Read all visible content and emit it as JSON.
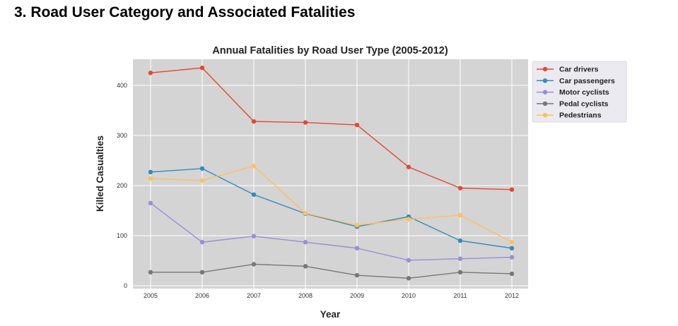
{
  "section_heading": "3. Road User Category and Associated Fatalities",
  "chart_data": {
    "type": "line",
    "title": "Annual Fatalities by Road User Type (2005-2012)",
    "xlabel": "Year",
    "ylabel": "Killed Casualties",
    "x": [
      "2005",
      "2006",
      "2007",
      "2008",
      "2009",
      "2010",
      "2011",
      "2012"
    ],
    "ylim": [
      0,
      450
    ],
    "yticks": [
      0,
      100,
      200,
      300,
      400
    ],
    "grid": true,
    "legend_position": "outside-right-top",
    "background": "#d4d4d4",
    "series": [
      {
        "name": "Car drivers",
        "color": "#e24a33",
        "values": [
          425,
          435,
          328,
          326,
          321,
          237,
          195,
          192
        ]
      },
      {
        "name": "Car passengers",
        "color": "#348abd",
        "values": [
          227,
          234,
          182,
          144,
          118,
          138,
          90,
          75
        ]
      },
      {
        "name": "Motor cyclists",
        "color": "#988ed5",
        "values": [
          165,
          87,
          99,
          87,
          75,
          51,
          54,
          57
        ]
      },
      {
        "name": "Pedal cyclists",
        "color": "#777777",
        "values": [
          27,
          27,
          43,
          39,
          21,
          15,
          27,
          24
        ]
      },
      {
        "name": "Pedestrians",
        "color": "#fbc15e",
        "values": [
          214,
          210,
          239,
          145,
          121,
          133,
          141,
          87
        ]
      }
    ]
  }
}
